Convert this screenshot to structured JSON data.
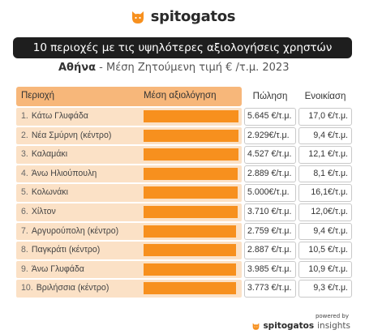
{
  "brand": {
    "name": "spitogatos",
    "accent": "#f7901e"
  },
  "title": "10 περιοχές με τις υψηλότερες αξιολογήσεις χρηστών",
  "subtitle": {
    "city": "Αθήνα",
    "rest": " - Μέση Ζητούμενη τιμή € /τ.μ. 2023"
  },
  "table": {
    "headers": {
      "region": "Περιοχή",
      "rating": "Μέση αξιολόγηση",
      "sale": "Πώληση",
      "rent": "Ενοικίαση"
    },
    "rows": [
      {
        "num": "1.",
        "name": "Κάτω Γλυφάδα",
        "rating": 0.99,
        "sale": "5.645 €/τ.μ.",
        "rent": "17,0 €/τ.μ."
      },
      {
        "num": "2.",
        "name": "Νέα Σμύρνη (κέντρο)",
        "rating": 0.99,
        "sale": "2.929€/τ.μ.",
        "rent": "9,4 €/τ.μ."
      },
      {
        "num": "3.",
        "name": "Καλαμάκι",
        "rating": 0.99,
        "sale": "4.527 €/τ.μ.",
        "rent": "12,1 €/τ.μ."
      },
      {
        "num": "4.",
        "name": "Άνω Ηλιούπουλη",
        "rating": 0.98,
        "sale": "2.889 €/τ.μ.",
        "rent": "8,1 €/τ.μ."
      },
      {
        "num": "5.",
        "name": "Κολωνάκι",
        "rating": 0.98,
        "sale": "5.000€/τ.μ.",
        "rent": "16,1€/τ.μ."
      },
      {
        "num": "6.",
        "name": "Χίλτον",
        "rating": 0.98,
        "sale": "3.710 €/τ.μ.",
        "rent": "12,0€/τ.μ."
      },
      {
        "num": "7.",
        "name": "Αργυρούπολη (κέντρο)",
        "rating": 0.97,
        "sale": "2.759 €/τ.μ.",
        "rent": "9,4 €/τ.μ."
      },
      {
        "num": "8.",
        "name": "Παγκράτι (κέντρο)",
        "rating": 0.97,
        "sale": "2.887 €/τ.μ.",
        "rent": "10,5 €/τ.μ."
      },
      {
        "num": "9.",
        "name": "Άνω Γλυφάδα",
        "rating": 0.97,
        "sale": "3.985 €/τ.μ.",
        "rent": "10,9 €/τ.μ."
      },
      {
        "num": "10.",
        "name": "Βριλήσσια (κέντρο)",
        "rating": 0.97,
        "sale": "3.773 €/τ.μ.",
        "rent": "9,3 €/τ.μ."
      }
    ]
  },
  "footer": {
    "powered_by": "powered by",
    "brand": "spitogatos",
    "suffix": "insights"
  },
  "icons": {
    "logo": "cat-head-icon"
  }
}
